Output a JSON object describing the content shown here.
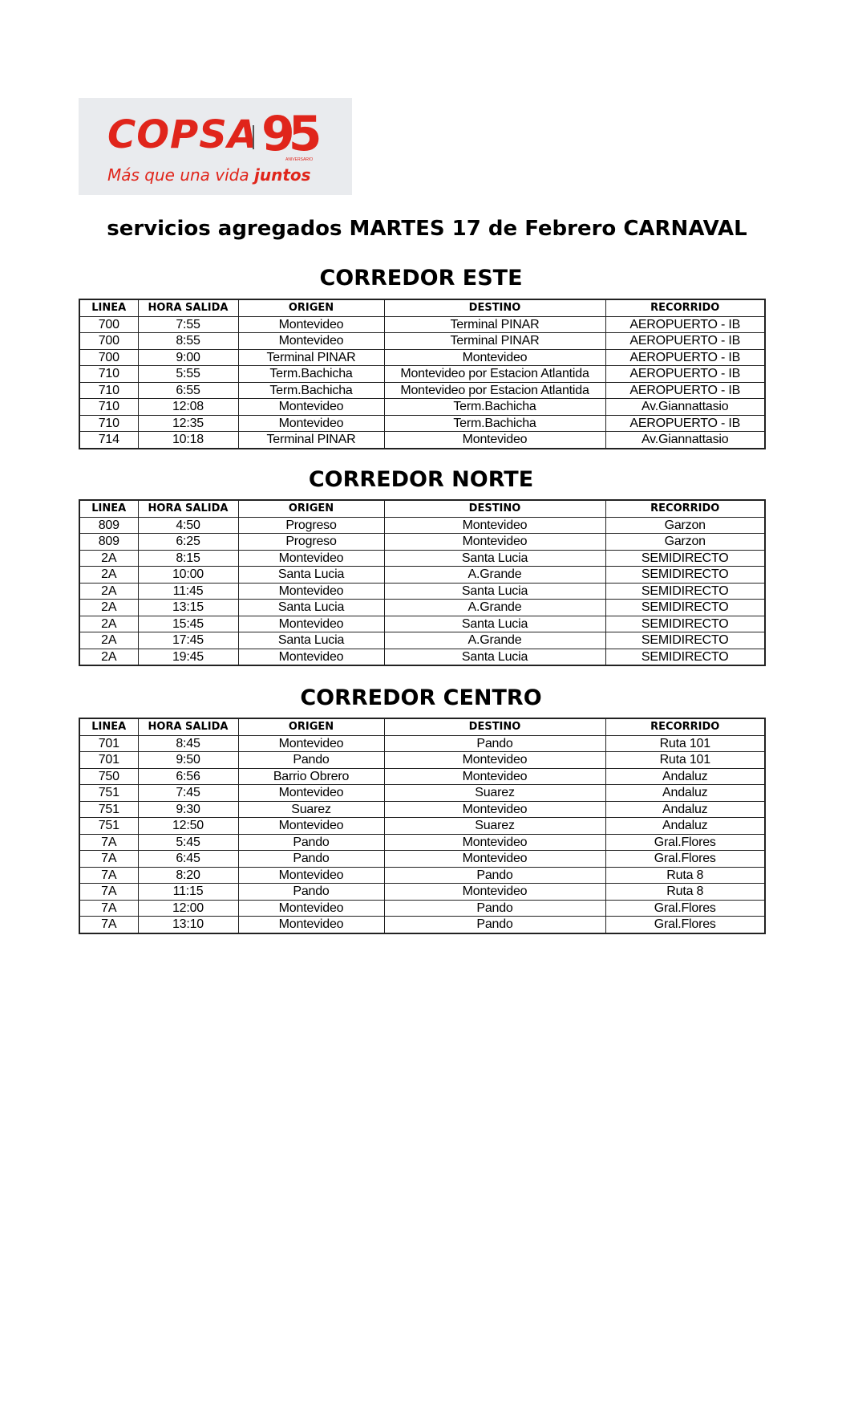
{
  "logo": {
    "brand": "COPSA",
    "number": "95",
    "anniversary": "ANIVERSARIO",
    "slogan_regular": "Más que una vida ",
    "slogan_bold": "juntos",
    "brand_color": "#e0251b"
  },
  "title": "servicios agregados MARTES 17 de Febrero CARNAVAL",
  "columns": [
    "LINEA",
    "HORA SALIDA",
    "ORIGEN",
    "DESTINO",
    "RECORRIDO"
  ],
  "sections": [
    {
      "title": "CORREDOR ESTE",
      "rows": [
        [
          "700",
          "7:55",
          "Montevideo",
          "Terminal PINAR",
          "AEROPUERTO - IB"
        ],
        [
          "700",
          "8:55",
          "Montevideo",
          "Terminal PINAR",
          "AEROPUERTO - IB"
        ],
        [
          "700",
          "9:00",
          "Terminal PINAR",
          "Montevideo",
          "AEROPUERTO - IB"
        ],
        [
          "710",
          "5:55",
          "Term.Bachicha",
          "Montevideo por Estacion Atlantida",
          "AEROPUERTO - IB"
        ],
        [
          "710",
          "6:55",
          "Term.Bachicha",
          "Montevideo por Estacion Atlantida",
          "AEROPUERTO - IB"
        ],
        [
          "710",
          "12:08",
          "Montevideo",
          "Term.Bachicha",
          "Av.Giannattasio"
        ],
        [
          "710",
          "12:35",
          "Montevideo",
          "Term.Bachicha",
          "AEROPUERTO - IB"
        ],
        [
          "714",
          "10:18",
          "Terminal PINAR",
          "Montevideo",
          "Av.Giannattasio"
        ]
      ]
    },
    {
      "title": "CORREDOR NORTE",
      "rows": [
        [
          "809",
          "4:50",
          "Progreso",
          "Montevideo",
          "Garzon"
        ],
        [
          "809",
          "6:25",
          "Progreso",
          "Montevideo",
          "Garzon"
        ],
        [
          "2A",
          "8:15",
          "Montevideo",
          "Santa Lucia",
          "SEMIDIRECTO"
        ],
        [
          "2A",
          "10:00",
          "Santa Lucia",
          "A.Grande",
          "SEMIDIRECTO"
        ],
        [
          "2A",
          "11:45",
          "Montevideo",
          "Santa Lucia",
          "SEMIDIRECTO"
        ],
        [
          "2A",
          "13:15",
          "Santa Lucia",
          "A.Grande",
          "SEMIDIRECTO"
        ],
        [
          "2A",
          "15:45",
          "Montevideo",
          "Santa Lucia",
          "SEMIDIRECTO"
        ],
        [
          "2A",
          "17:45",
          "Santa Lucia",
          "A.Grande",
          "SEMIDIRECTO"
        ],
        [
          "2A",
          "19:45",
          "Montevideo",
          "Santa Lucia",
          "SEMIDIRECTO"
        ]
      ]
    },
    {
      "title": "CORREDOR CENTRO",
      "rows": [
        [
          "701",
          "8:45",
          "Montevideo",
          "Pando",
          "Ruta 101"
        ],
        [
          "701",
          "9:50",
          "Pando",
          "Montevideo",
          "Ruta 101"
        ],
        [
          "750",
          "6:56",
          "Barrio Obrero",
          "Montevideo",
          "Andaluz"
        ],
        [
          "751",
          "7:45",
          "Montevideo",
          "Suarez",
          "Andaluz"
        ],
        [
          "751",
          "9:30",
          "Suarez",
          "Montevideo",
          "Andaluz"
        ],
        [
          "751",
          "12:50",
          "Montevideo",
          "Suarez",
          "Andaluz"
        ],
        [
          "7A",
          "5:45",
          "Pando",
          "Montevideo",
          "Gral.Flores"
        ],
        [
          "7A",
          "6:45",
          "Pando",
          "Montevideo",
          "Gral.Flores"
        ],
        [
          "7A",
          "8:20",
          "Montevideo",
          "Pando",
          "Ruta 8"
        ],
        [
          "7A",
          "11:15",
          "Pando",
          "Montevideo",
          "Ruta 8"
        ],
        [
          "7A",
          "12:00",
          "Montevideo",
          "Pando",
          "Gral.Flores"
        ],
        [
          "7A",
          "13:10",
          "Montevideo",
          "Pando",
          "Gral.Flores"
        ]
      ]
    }
  ]
}
